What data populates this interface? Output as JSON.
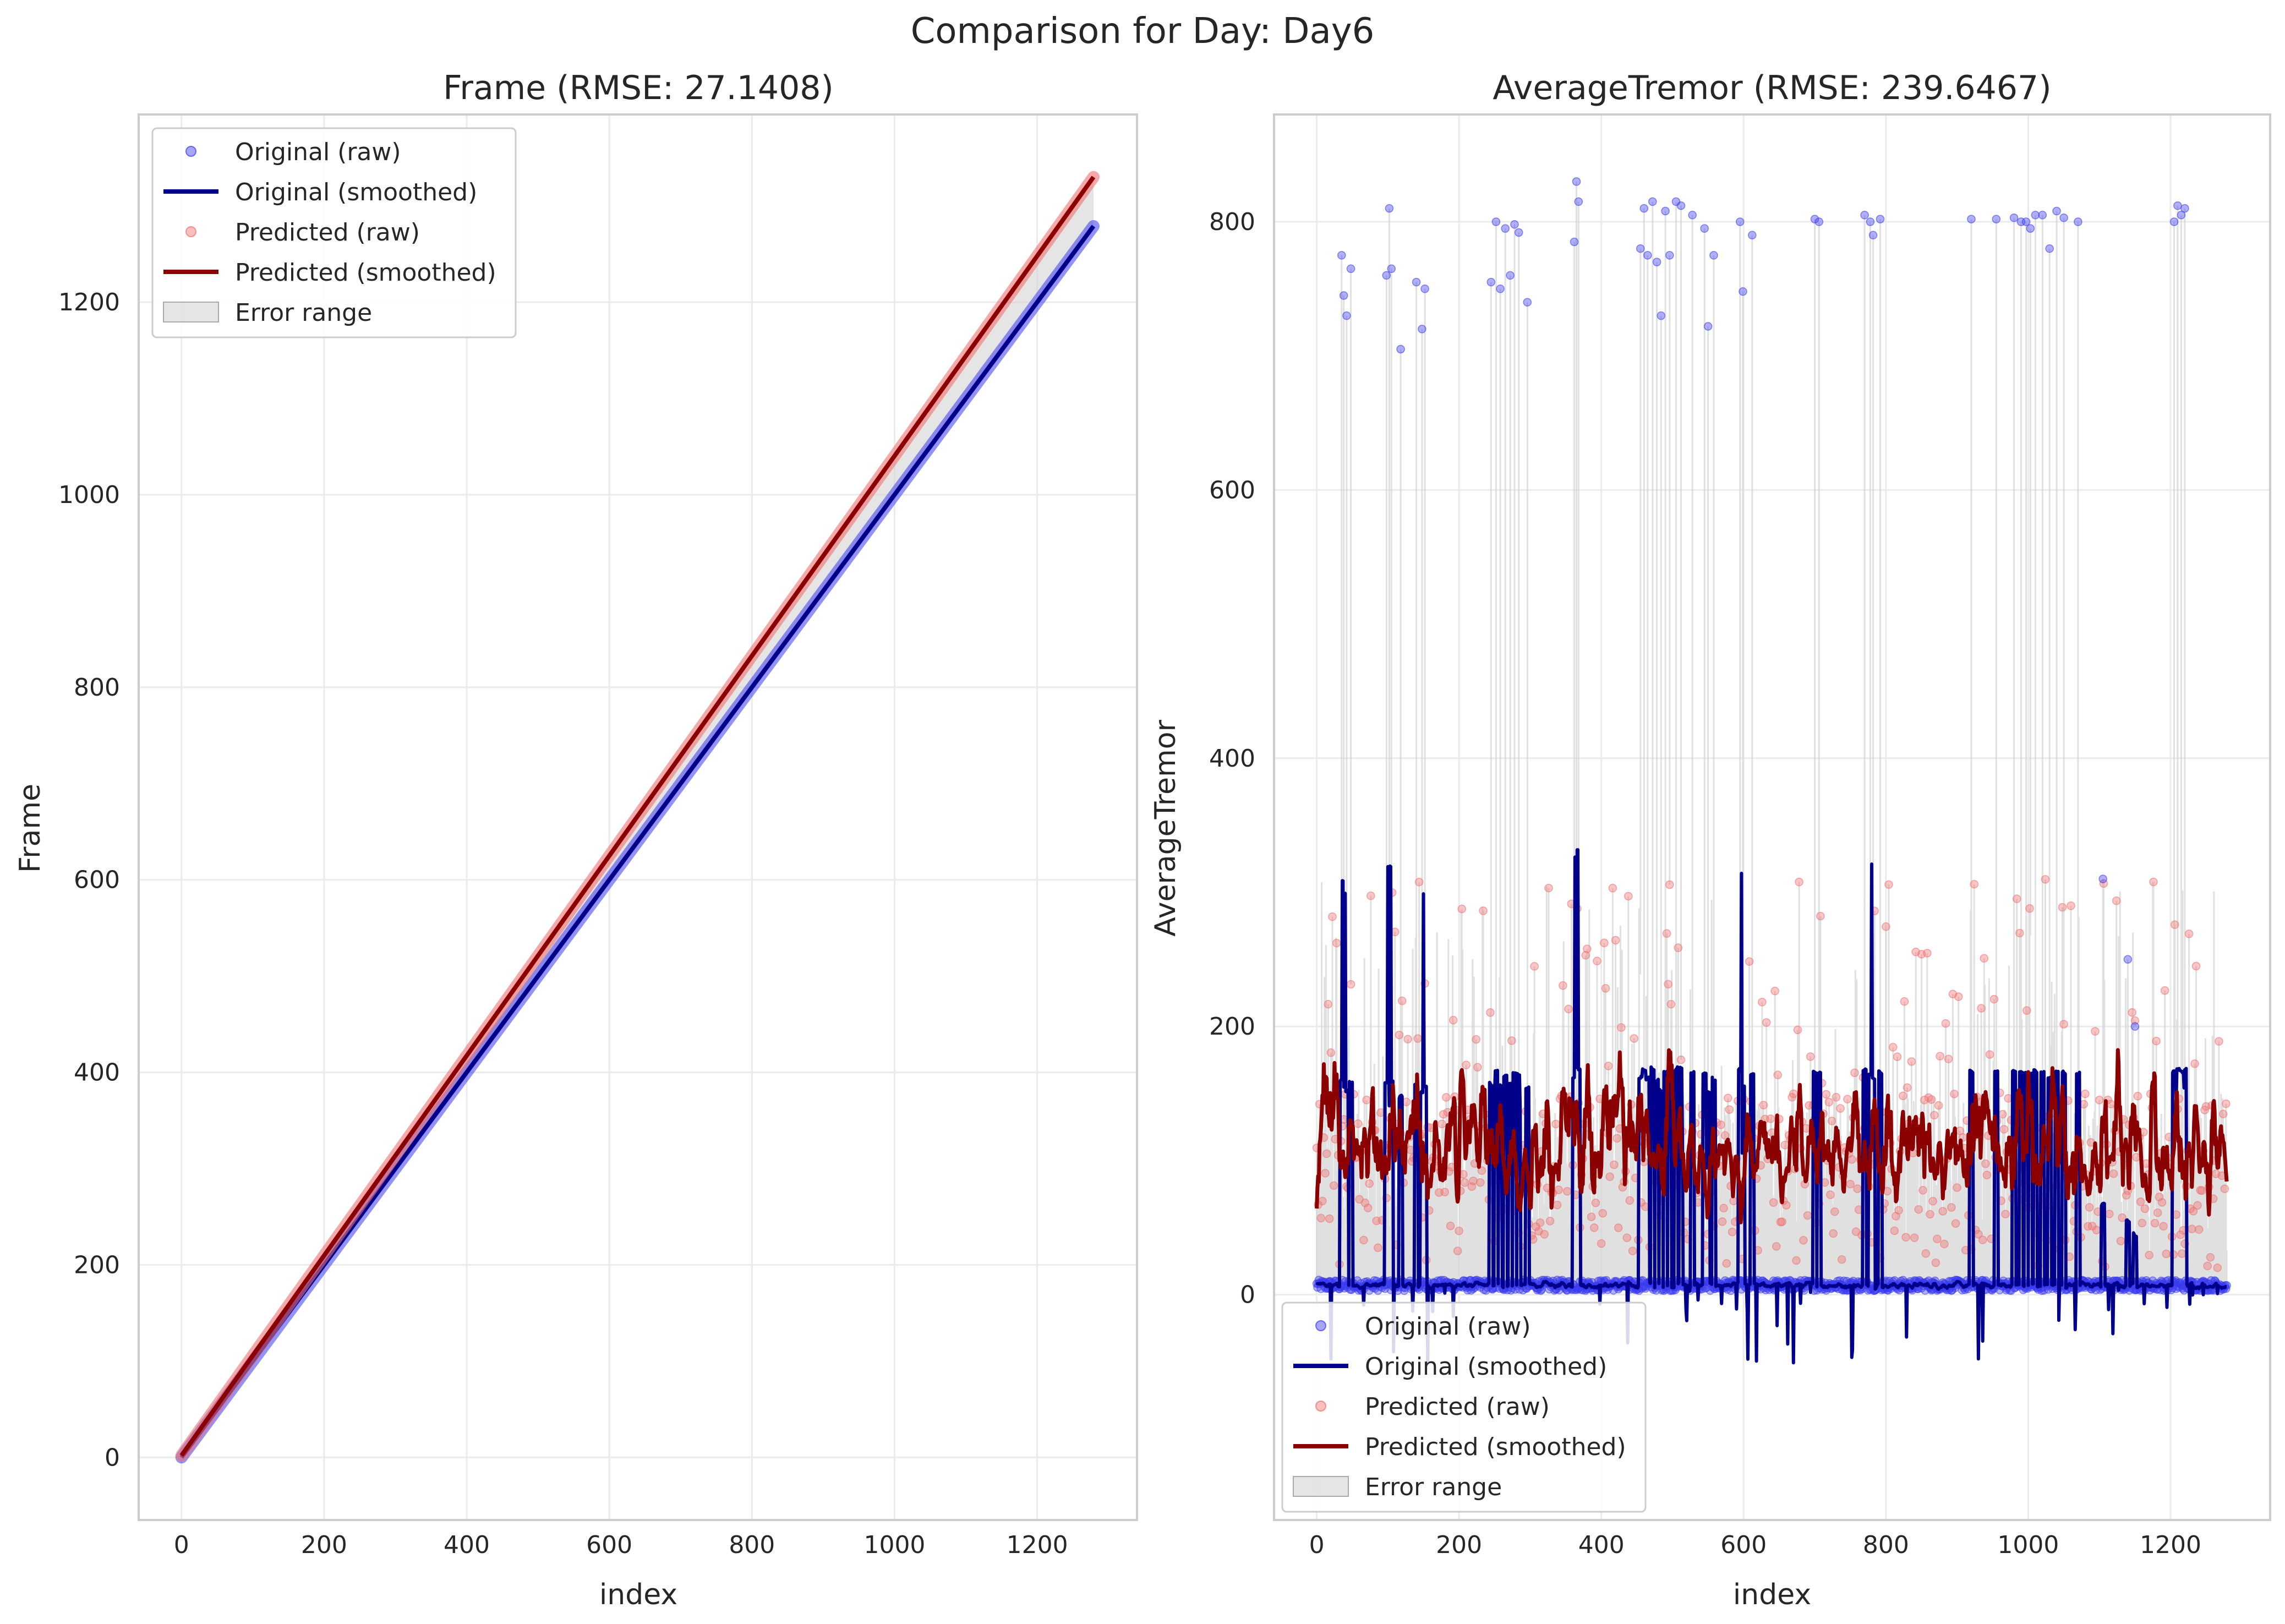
{
  "figure": {
    "suptitle": "Comparison for Day: Day6"
  },
  "colors": {
    "original_raw": "#3a3af0",
    "original_smoothed": "#00008b",
    "predicted_raw": "#f07070",
    "predicted_smoothed": "#8b0000",
    "error_fill": "#d3d3d3",
    "grid": "#ebebeb",
    "frame": "#cccccc"
  },
  "chart_data": [
    {
      "type": "line",
      "title": "Frame (RMSE: 27.1408)",
      "xlabel": "index",
      "ylabel": "Frame",
      "xlim": [
        -60,
        1340
      ],
      "ylim": [
        -65,
        1395
      ],
      "xticks": [
        0,
        200,
        400,
        600,
        800,
        1000,
        1200
      ],
      "yticks": [
        0,
        200,
        400,
        600,
        800,
        1000,
        1200
      ],
      "grid": true,
      "legend_position": "upper-left",
      "legend": [
        "Original (raw)",
        "Original (smoothed)",
        "Predicted (raw)",
        "Predicted (smoothed)",
        "Error range"
      ],
      "n_points": 1280,
      "series": [
        {
          "name": "Original (raw)",
          "kind": "scatter",
          "x": [
            0,
            1279
          ],
          "y": [
            0,
            1279
          ]
        },
        {
          "name": "Original (smoothed)",
          "kind": "line",
          "x": [
            0,
            1279
          ],
          "y": [
            0,
            1279
          ]
        },
        {
          "name": "Predicted (raw)",
          "kind": "scatter",
          "x": [
            0,
            1279
          ],
          "y": [
            2,
            1330
          ]
        },
        {
          "name": "Predicted (smoothed)",
          "kind": "line",
          "x": [
            0,
            1279
          ],
          "y": [
            2,
            1330
          ]
        }
      ]
    },
    {
      "type": "line",
      "title": "AverageTremor (RMSE: 239.6467)",
      "xlabel": "index",
      "ylabel": "AverageTremor",
      "xlim": [
        -60,
        1340
      ],
      "ylim": [
        -168,
        880
      ],
      "xticks": [
        0,
        200,
        400,
        600,
        800,
        1000,
        1200
      ],
      "yticks": [
        0,
        200,
        400,
        600,
        800
      ],
      "grid": true,
      "legend_position": "lower-left",
      "legend": [
        "Original (raw)",
        "Original (smoothed)",
        "Predicted (raw)",
        "Predicted (smoothed)",
        "Error range"
      ],
      "n_points": 1280,
      "baseline_original": 3,
      "predicted_range": [
        20,
        310
      ],
      "original_spikes": [
        {
          "x": 35,
          "y": 775
        },
        {
          "x": 38,
          "y": 745
        },
        {
          "x": 42,
          "y": 730
        },
        {
          "x": 48,
          "y": 765
        },
        {
          "x": 98,
          "y": 760
        },
        {
          "x": 102,
          "y": 810
        },
        {
          "x": 105,
          "y": 765
        },
        {
          "x": 118,
          "y": 705
        },
        {
          "x": 140,
          "y": 755
        },
        {
          "x": 148,
          "y": 720
        },
        {
          "x": 152,
          "y": 750
        },
        {
          "x": 245,
          "y": 755
        },
        {
          "x": 252,
          "y": 800
        },
        {
          "x": 258,
          "y": 750
        },
        {
          "x": 265,
          "y": 795
        },
        {
          "x": 272,
          "y": 760
        },
        {
          "x": 278,
          "y": 798
        },
        {
          "x": 284,
          "y": 792
        },
        {
          "x": 296,
          "y": 740
        },
        {
          "x": 362,
          "y": 785
        },
        {
          "x": 365,
          "y": 830
        },
        {
          "x": 368,
          "y": 815
        },
        {
          "x": 455,
          "y": 780
        },
        {
          "x": 460,
          "y": 810
        },
        {
          "x": 465,
          "y": 775
        },
        {
          "x": 472,
          "y": 815
        },
        {
          "x": 478,
          "y": 770
        },
        {
          "x": 484,
          "y": 730
        },
        {
          "x": 490,
          "y": 808
        },
        {
          "x": 496,
          "y": 775
        },
        {
          "x": 505,
          "y": 815
        },
        {
          "x": 512,
          "y": 812
        },
        {
          "x": 528,
          "y": 805
        },
        {
          "x": 545,
          "y": 795
        },
        {
          "x": 550,
          "y": 722
        },
        {
          "x": 558,
          "y": 775
        },
        {
          "x": 595,
          "y": 800
        },
        {
          "x": 599,
          "y": 748
        },
        {
          "x": 612,
          "y": 790
        },
        {
          "x": 700,
          "y": 802
        },
        {
          "x": 706,
          "y": 800
        },
        {
          "x": 770,
          "y": 805
        },
        {
          "x": 778,
          "y": 800
        },
        {
          "x": 782,
          "y": 790
        },
        {
          "x": 792,
          "y": 802
        },
        {
          "x": 920,
          "y": 802
        },
        {
          "x": 955,
          "y": 802
        },
        {
          "x": 980,
          "y": 803
        },
        {
          "x": 990,
          "y": 800
        },
        {
          "x": 997,
          "y": 800
        },
        {
          "x": 1003,
          "y": 795
        },
        {
          "x": 1010,
          "y": 805
        },
        {
          "x": 1020,
          "y": 805
        },
        {
          "x": 1030,
          "y": 780
        },
        {
          "x": 1040,
          "y": 808
        },
        {
          "x": 1050,
          "y": 803
        },
        {
          "x": 1070,
          "y": 800
        },
        {
          "x": 1105,
          "y": 310
        },
        {
          "x": 1140,
          "y": 250
        },
        {
          "x": 1150,
          "y": 200
        },
        {
          "x": 1205,
          "y": 800
        },
        {
          "x": 1210,
          "y": 812
        },
        {
          "x": 1215,
          "y": 805
        },
        {
          "x": 1220,
          "y": 810
        }
      ],
      "series": [
        {
          "name": "Original (raw)",
          "kind": "scatter"
        },
        {
          "name": "Original (smoothed)",
          "kind": "line"
        },
        {
          "name": "Predicted (raw)",
          "kind": "scatter"
        },
        {
          "name": "Predicted (smoothed)",
          "kind": "line"
        }
      ]
    }
  ]
}
